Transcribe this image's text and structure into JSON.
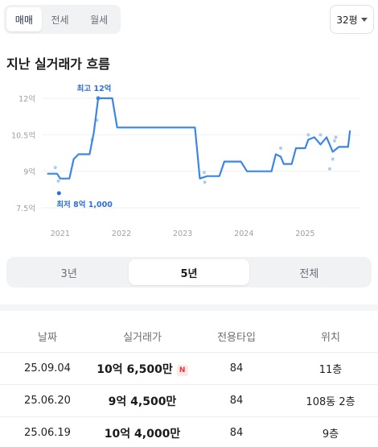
{
  "top_tabs": [
    "매매",
    "전세",
    "월세"
  ],
  "size_select": {
    "value": "32평"
  },
  "section_title": "지난 실거래가 흐름",
  "chart_data": {
    "type": "line",
    "ylabel": "",
    "xlabel": "",
    "y_ticks": [
      {
        "value": 12,
        "label": "12억"
      },
      {
        "value": 10.5,
        "label": "10.5억"
      },
      {
        "value": 9,
        "label": "9억"
      },
      {
        "value": 7.5,
        "label": "7.5억"
      }
    ],
    "x_ticks": [
      {
        "value": 2021,
        "label": "2021"
      },
      {
        "value": 2022,
        "label": "2022"
      },
      {
        "value": 2023,
        "label": "2023"
      },
      {
        "value": 2024,
        "label": "2024"
      },
      {
        "value": 2025,
        "label": "2025"
      }
    ],
    "ylim": [
      7.5,
      12
    ],
    "xlim": [
      2020.7,
      2025.9
    ],
    "series": [
      {
        "name": "",
        "points": [
          [
            2020.8,
            8.9
          ],
          [
            2020.95,
            8.9
          ],
          [
            2021.0,
            8.7
          ],
          [
            2021.15,
            8.7
          ],
          [
            2021.22,
            9.5
          ],
          [
            2021.3,
            9.7
          ],
          [
            2021.48,
            9.7
          ],
          [
            2021.55,
            10.6
          ],
          [
            2021.62,
            12.0
          ],
          [
            2021.85,
            12.0
          ],
          [
            2021.93,
            10.8
          ],
          [
            2022.1,
            10.8
          ],
          [
            2023.2,
            10.8
          ],
          [
            2023.28,
            8.7
          ],
          [
            2023.4,
            8.8
          ],
          [
            2023.6,
            8.8
          ],
          [
            2023.68,
            9.4
          ],
          [
            2023.95,
            9.4
          ],
          [
            2024.05,
            9.0
          ],
          [
            2024.45,
            9.0
          ],
          [
            2024.52,
            9.7
          ],
          [
            2024.6,
            9.6
          ],
          [
            2024.65,
            9.3
          ],
          [
            2024.78,
            9.3
          ],
          [
            2024.85,
            9.95
          ],
          [
            2025.0,
            9.95
          ],
          [
            2025.05,
            10.3
          ],
          [
            2025.15,
            10.4
          ],
          [
            2025.25,
            10.1
          ],
          [
            2025.35,
            10.4
          ],
          [
            2025.45,
            9.8
          ],
          [
            2025.55,
            10.0
          ],
          [
            2025.7,
            10.0
          ],
          [
            2025.73,
            10.65
          ]
        ]
      }
    ],
    "scatter": [
      [
        2020.92,
        9.15
      ],
      [
        2020.97,
        8.6
      ],
      [
        2020.98,
        8.1
      ],
      [
        2021.52,
        10.3
      ],
      [
        2021.6,
        11.1
      ],
      [
        2023.35,
        8.95
      ],
      [
        2023.36,
        8.55
      ],
      [
        2024.6,
        9.95
      ],
      [
        2025.05,
        10.5
      ],
      [
        2025.25,
        10.5
      ],
      [
        2025.4,
        9.1
      ],
      [
        2025.45,
        9.5
      ],
      [
        2025.48,
        10.25
      ],
      [
        2025.5,
        10.4
      ]
    ],
    "max_label": "최고 12억",
    "min_label": "최저 8억 1,000",
    "max_point": [
      2021.62,
      12.0
    ],
    "min_point": [
      2020.98,
      8.1
    ],
    "line_color": "#3a86e8",
    "dot_color": "#a9ccf5"
  },
  "periods": [
    "3년",
    "5년",
    "전체"
  ],
  "table": {
    "headers": [
      "날짜",
      "실거래가",
      "전용타입",
      "위치"
    ],
    "rows": [
      {
        "date": "25.09.04",
        "price": "10억 6,500만",
        "new": "N",
        "type": "84",
        "location": "11층"
      },
      {
        "date": "25.06.20",
        "price": "9억 4,500만",
        "new": "",
        "type": "84",
        "location": "108동 2층"
      },
      {
        "date": "25.06.19",
        "price": "10억 4,000만",
        "new": "",
        "type": "84",
        "location": "9층"
      }
    ]
  }
}
